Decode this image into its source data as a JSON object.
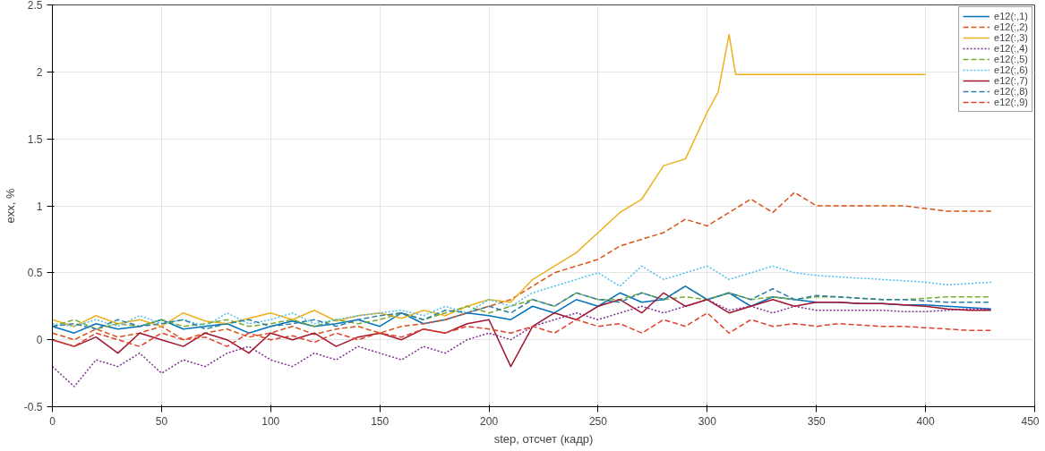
{
  "chart_data": {
    "type": "line",
    "xlabel": "step, отсчет (кадр)",
    "ylabel": "exx, %",
    "xlim": [
      0,
      450
    ],
    "ylim": [
      -0.5,
      2.5
    ],
    "xticks": [
      0,
      50,
      100,
      150,
      200,
      250,
      300,
      350,
      400,
      450
    ],
    "yticks": [
      -0.5,
      0,
      0.5,
      1,
      1.5,
      2,
      2.5
    ],
    "grid": true,
    "legend": "top right",
    "x": [
      0,
      10,
      20,
      30,
      40,
      50,
      60,
      70,
      80,
      90,
      100,
      110,
      120,
      130,
      140,
      150,
      160,
      170,
      180,
      190,
      200,
      210,
      220,
      230,
      240,
      250,
      260,
      270,
      280,
      290,
      300,
      310,
      320,
      330,
      340,
      350,
      360,
      370,
      380,
      390,
      400,
      410,
      420,
      430
    ],
    "series": [
      {
        "name": "e12(:,1)",
        "color": "#0072bd",
        "line_style": "solid",
        "values": [
          0.1,
          0.05,
          0.12,
          0.08,
          0.1,
          0.15,
          0.08,
          0.1,
          0.12,
          0.05,
          0.1,
          0.14,
          0.1,
          0.12,
          0.15,
          0.1,
          0.2,
          0.12,
          0.15,
          0.2,
          0.18,
          0.15,
          0.25,
          0.2,
          0.3,
          0.25,
          0.35,
          0.28,
          0.3,
          0.4,
          0.3,
          0.35,
          0.25,
          0.32,
          0.3,
          0.28,
          0.28,
          0.27,
          0.27,
          0.26,
          0.26,
          0.25,
          0.24,
          0.23
        ]
      },
      {
        "name": "e12(:,2)",
        "color": "#d95319",
        "line_style": "dashed",
        "values": [
          0.05,
          0,
          0.08,
          0.02,
          0.05,
          0.1,
          0,
          0.05,
          0.08,
          0.02,
          0.05,
          0.1,
          0.04,
          0.08,
          0.1,
          0.05,
          0.1,
          0.12,
          0.15,
          0.2,
          0.25,
          0.3,
          0.4,
          0.5,
          0.55,
          0.6,
          0.7,
          0.75,
          0.8,
          0.9,
          0.85,
          0.95,
          1.05,
          0.95,
          1.1,
          1.0,
          1.0,
          1.0,
          1.0,
          1.0,
          0.98,
          0.96,
          0.96,
          0.96
        ]
      },
      {
        "name": "e12(:,3)",
        "color": "#edb120",
        "line_style": "solid",
        "x": [
          0,
          10,
          20,
          30,
          40,
          50,
          60,
          70,
          80,
          90,
          100,
          110,
          120,
          130,
          140,
          150,
          160,
          170,
          180,
          190,
          200,
          210,
          220,
          230,
          240,
          250,
          260,
          270,
          280,
          290,
          300,
          305,
          310,
          313,
          320,
          330,
          340,
          350,
          360,
          370,
          380,
          390,
          400
        ],
        "values": [
          0.15,
          0.1,
          0.18,
          0.12,
          0.15,
          0.1,
          0.2,
          0.14,
          0.12,
          0.16,
          0.2,
          0.15,
          0.22,
          0.14,
          0.18,
          0.2,
          0.16,
          0.22,
          0.18,
          0.25,
          0.3,
          0.28,
          0.45,
          0.55,
          0.65,
          0.8,
          0.95,
          1.05,
          1.3,
          1.35,
          1.7,
          1.85,
          2.28,
          1.98,
          1.98,
          1.98,
          1.98,
          1.98,
          1.98,
          1.98,
          1.98,
          1.98,
          1.98
        ]
      },
      {
        "name": "e12(:,4)",
        "color": "#7e2f8e",
        "line_style": "dotted",
        "values": [
          -0.2,
          -0.35,
          -0.15,
          -0.2,
          -0.1,
          -0.25,
          -0.15,
          -0.2,
          -0.1,
          -0.05,
          -0.15,
          -0.2,
          -0.1,
          -0.15,
          -0.05,
          -0.1,
          -0.15,
          -0.05,
          -0.1,
          0,
          0.05,
          0,
          0.1,
          0.15,
          0.2,
          0.15,
          0.2,
          0.25,
          0.2,
          0.25,
          0.3,
          0.22,
          0.25,
          0.2,
          0.25,
          0.22,
          0.22,
          0.22,
          0.22,
          0.21,
          0.21,
          0.22,
          0.23,
          0.23
        ]
      },
      {
        "name": "e12(:,5)",
        "color": "#77ac30",
        "line_style": "dashed",
        "values": [
          0.1,
          0.15,
          0.08,
          0.12,
          0.1,
          0.15,
          0.1,
          0.12,
          0.15,
          0.1,
          0.12,
          0.15,
          0.1,
          0.15,
          0.12,
          0.15,
          0.2,
          0.15,
          0.2,
          0.25,
          0.2,
          0.25,
          0.3,
          0.25,
          0.35,
          0.3,
          0.3,
          0.35,
          0.3,
          0.32,
          0.3,
          0.35,
          0.3,
          0.32,
          0.3,
          0.32,
          0.32,
          0.31,
          0.3,
          0.3,
          0.31,
          0.32,
          0.32,
          0.32
        ]
      },
      {
        "name": "e12(:,6)",
        "color": "#4dbeee",
        "line_style": "dotted",
        "values": [
          0.12,
          0.1,
          0.15,
          0.1,
          0.18,
          0.12,
          0.15,
          0.1,
          0.2,
          0.12,
          0.15,
          0.2,
          0.12,
          0.15,
          0.18,
          0.2,
          0.22,
          0.18,
          0.25,
          0.2,
          0.3,
          0.25,
          0.35,
          0.4,
          0.45,
          0.5,
          0.4,
          0.55,
          0.45,
          0.5,
          0.55,
          0.45,
          0.5,
          0.55,
          0.5,
          0.48,
          0.47,
          0.46,
          0.45,
          0.44,
          0.43,
          0.41,
          0.42,
          0.43
        ]
      },
      {
        "name": "e12(:,7)",
        "color": "#a2142f",
        "line_style": "solid",
        "values": [
          0,
          -0.05,
          0.02,
          -0.1,
          0.05,
          0,
          -0.05,
          0.05,
          0,
          -0.1,
          0.05,
          0,
          0.05,
          -0.05,
          0.02,
          0.05,
          0,
          0.08,
          0.05,
          0.12,
          0.15,
          -0.2,
          0.1,
          0.2,
          0.15,
          0.25,
          0.3,
          0.2,
          0.35,
          0.25,
          0.3,
          0.2,
          0.25,
          0.3,
          0.25,
          0.28,
          0.28,
          0.27,
          0.27,
          0.26,
          0.25,
          0.23,
          0.22,
          0.22
        ]
      },
      {
        "name": "e12(:,8)",
        "color": "#2b7fa8",
        "line_style": "dashed",
        "values": [
          0.1,
          0.12,
          0.08,
          0.15,
          0.1,
          0.12,
          0.15,
          0.08,
          0.12,
          0.15,
          0.1,
          0.12,
          0.15,
          0.1,
          0.15,
          0.18,
          0.2,
          0.15,
          0.22,
          0.2,
          0.25,
          0.2,
          0.3,
          0.25,
          0.35,
          0.3,
          0.28,
          0.35,
          0.3,
          0.4,
          0.3,
          0.35,
          0.3,
          0.38,
          0.3,
          0.33,
          0.32,
          0.31,
          0.3,
          0.3,
          0.29,
          0.28,
          0.28,
          0.28
        ]
      },
      {
        "name": "e12(:,9)",
        "color": "#e0402a",
        "line_style": "dashed",
        "values": [
          0,
          -0.05,
          0.05,
          0,
          -0.05,
          0.05,
          0,
          0.02,
          -0.05,
          0.05,
          0,
          0.03,
          -0.02,
          0.05,
          0,
          0.05,
          0.02,
          0.08,
          0.05,
          0.1,
          0.08,
          0.05,
          0.1,
          0.05,
          0.15,
          0.1,
          0.12,
          0.05,
          0.15,
          0.1,
          0.2,
          0.05,
          0.15,
          0.1,
          0.12,
          0.1,
          0.12,
          0.11,
          0.1,
          0.1,
          0.09,
          0.08,
          0.07,
          0.07
        ]
      }
    ]
  }
}
